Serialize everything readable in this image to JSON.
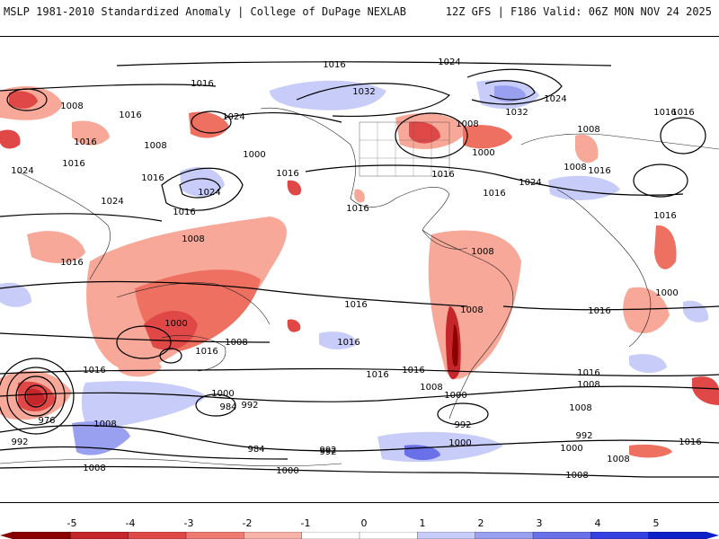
{
  "header": {
    "left": "MSLP 1981-2010 Standardized Anomaly | College of DuPage NEXLAB",
    "right": "12Z GFS | F186 Valid: 06Z MON NOV 24 2025"
  },
  "isobar_labels": [
    "1016",
    "1024",
    "1016",
    "1008",
    "1016",
    "1016",
    "1024",
    "1032",
    "1008",
    "1032",
    "1024",
    "1016",
    "1008",
    "1000",
    "1016",
    "1008",
    "1024",
    "1016",
    "1016",
    "1024",
    "1016",
    "1000",
    "1016",
    "1016",
    "1024",
    "1016",
    "1024",
    "1016",
    "1008",
    "1016",
    "1016",
    "1008",
    "1008",
    "1016",
    "1000",
    "1008",
    "1016",
    "1008",
    "1016",
    "1000",
    "1016",
    "1016",
    "1016",
    "1016",
    "1016",
    "1008",
    "976",
    "1008",
    "992",
    "1008",
    "1000",
    "992",
    "984",
    "992",
    "1000",
    "992",
    "1000",
    "1008",
    "984",
    "992",
    "1000",
    "992",
    "1000",
    "1008",
    "1016",
    "1008",
    "1008",
    "1016"
  ],
  "colorbar": {
    "ticks": [
      "-5",
      "-4",
      "-3",
      "-2",
      "-1",
      "0",
      "1",
      "2",
      "3",
      "4",
      "5"
    ],
    "colors": [
      "#8b0000",
      "#c4262a",
      "#e04848",
      "#ee7a70",
      "#f8b2a8",
      "#ffffff",
      "#ffffff",
      "#c8ccf8",
      "#9aa0f0",
      "#6a70e8",
      "#3540e0",
      "#1020c8"
    ]
  },
  "pressure_systems": {
    "highs": [
      "1032",
      "1032",
      "1024",
      "1024",
      "1024"
    ],
    "lows": [
      "976",
      "984",
      "992",
      "1000",
      "1008"
    ]
  }
}
